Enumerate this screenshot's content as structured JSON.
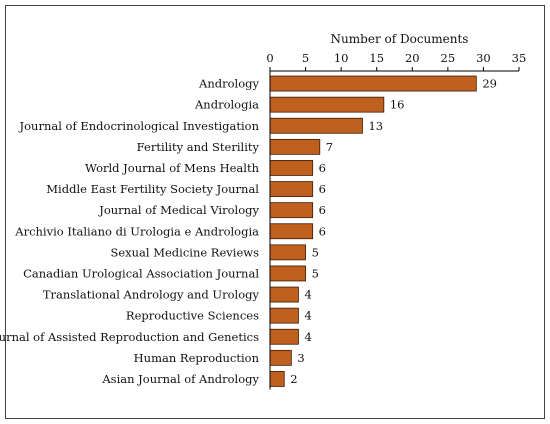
{
  "chart_data": {
    "type": "bar",
    "orientation": "horizontal",
    "xlabel": "Number of Documents",
    "xaxis_position": "top",
    "xlim": [
      0,
      35
    ],
    "xticks": [
      0,
      5,
      10,
      15,
      20,
      25,
      30,
      35
    ],
    "grid": false,
    "bar_color": "#C0601E",
    "categories": [
      "Andrology",
      "Andrologia",
      "Journal of Endocrinological Investigation",
      "Fertility and Sterility",
      "World Journal of Mens Health",
      "Middle East Fertility Society Journal",
      "Journal of Medical Virology",
      "Archivio Italiano di Urologia e Andrologia",
      "Sexual Medicine Reviews",
      "Canadian Urological Association Journal",
      "Translational Andrology and Urology",
      "Reproductive Sciences",
      "Journal of Assisted Reproduction and Genetics",
      "Human Reproduction",
      "Asian Journal of Andrology"
    ],
    "values": [
      29,
      16,
      13,
      7,
      6,
      6,
      6,
      6,
      5,
      5,
      4,
      4,
      4,
      3,
      2
    ]
  }
}
